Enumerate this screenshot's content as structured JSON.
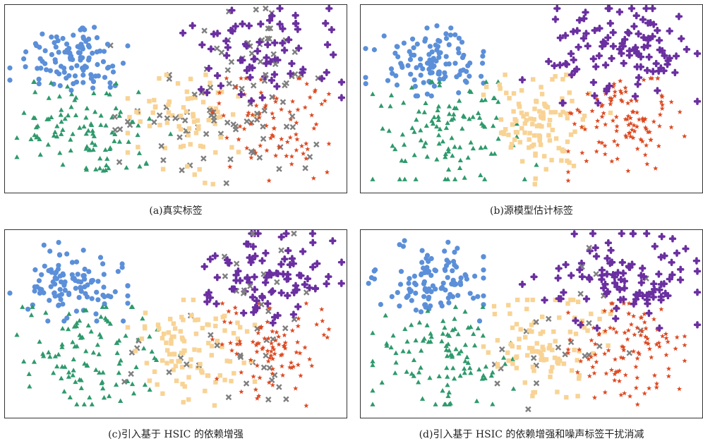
{
  "colors": {
    "circle": "#5b8fd9",
    "triangle": "#2e9a6c",
    "square": "#f8d394",
    "star": "#dd4a22",
    "cross_purple": "#6a2fa0",
    "cross_gray": "#7f7f7f"
  },
  "panels": [
    {
      "caption": "(a)真实标签",
      "gray_level": "high"
    },
    {
      "caption": "(b)源模型估计标签",
      "gray_level": "none"
    },
    {
      "caption": "(c)引入基于 HSIC 的依赖增强",
      "gray_level": "mid"
    },
    {
      "caption": "(d)引入基于 HSIC 的依赖增强和噪声标签干扰消减",
      "gray_level": "low"
    }
  ],
  "chart_data": [
    {
      "type": "scatter",
      "title": "(a)真实标签",
      "xlabel": "",
      "ylabel": "",
      "grid": false,
      "legend": "none",
      "axes_visible": false,
      "series": [
        {
          "marker": "circle",
          "color": "#5b8fd9"
        },
        {
          "marker": "triangle",
          "color": "#2e9a6c"
        },
        {
          "marker": "square",
          "color": "#f8d394"
        },
        {
          "marker": "star",
          "color": "#dd4a22"
        },
        {
          "marker": "cross",
          "color": "#6a2fa0"
        },
        {
          "marker": "cross",
          "color": "#7f7f7f"
        }
      ]
    },
    {
      "type": "scatter",
      "title": "(b)源模型估计标签",
      "xlabel": "",
      "ylabel": "",
      "grid": false,
      "legend": "none",
      "axes_visible": false,
      "series": [
        {
          "marker": "circle",
          "color": "#5b8fd9"
        },
        {
          "marker": "triangle",
          "color": "#2e9a6c"
        },
        {
          "marker": "square",
          "color": "#f8d394"
        },
        {
          "marker": "star",
          "color": "#dd4a22"
        },
        {
          "marker": "cross",
          "color": "#6a2fa0"
        }
      ]
    },
    {
      "type": "scatter",
      "title": "(c)引入基于 HSIC 的依赖增强",
      "xlabel": "",
      "ylabel": "",
      "grid": false,
      "legend": "none",
      "axes_visible": false,
      "series": [
        {
          "marker": "circle",
          "color": "#5b8fd9"
        },
        {
          "marker": "triangle",
          "color": "#2e9a6c"
        },
        {
          "marker": "square",
          "color": "#f8d394"
        },
        {
          "marker": "star",
          "color": "#dd4a22"
        },
        {
          "marker": "cross",
          "color": "#6a2fa0"
        },
        {
          "marker": "cross",
          "color": "#7f7f7f"
        }
      ]
    },
    {
      "type": "scatter",
      "title": "(d)引入基于 HSIC 的依赖增强和噪声标签干扰消减",
      "xlabel": "",
      "ylabel": "",
      "grid": false,
      "legend": "none",
      "axes_visible": false,
      "series": [
        {
          "marker": "circle",
          "color": "#5b8fd9"
        },
        {
          "marker": "triangle",
          "color": "#2e9a6c"
        },
        {
          "marker": "square",
          "color": "#f8d394"
        },
        {
          "marker": "star",
          "color": "#dd4a22"
        },
        {
          "marker": "cross",
          "color": "#6a2fa0"
        },
        {
          "marker": "cross",
          "color": "#7f7f7f"
        }
      ]
    }
  ]
}
